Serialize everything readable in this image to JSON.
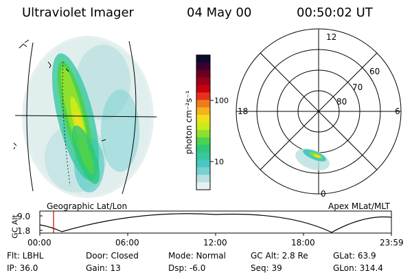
{
  "header": {
    "instrument": "Ultraviolet Imager",
    "date": "04 May 00",
    "time": "00:50:02 UT"
  },
  "left_map": {
    "caption": "Geographic Lat/Lon"
  },
  "colorbar": {
    "unit_label": "photon cm⁻²s⁻¹",
    "ticks": [
      "100",
      "10"
    ],
    "colors": [
      "#0b0b2e",
      "#3a0030",
      "#6a0020",
      "#9a0016",
      "#c80010",
      "#e6301a",
      "#f07a1c",
      "#f5b21e",
      "#f0e01a",
      "#c8ec1a",
      "#8ee030",
      "#4ed24e",
      "#2cc878",
      "#38c8a0",
      "#48c8c0",
      "#78d0d0",
      "#b8e0e0",
      "#e6f0f0"
    ]
  },
  "polar": {
    "caption": "Apex MLat/MLT",
    "mlt_labels": [
      "12",
      "18",
      "6",
      "0"
    ],
    "lat_labels": [
      "60",
      "70",
      "80"
    ]
  },
  "altitude_plot": {
    "ylabel": "GC Alt",
    "y_ticks": [
      "9.0",
      "1.8"
    ],
    "x_ticks": [
      "00:00",
      "06:00",
      "12:00",
      "18:00",
      "23:59"
    ],
    "current_time_marker": "00:50",
    "marker_color": "#cc0000"
  },
  "status": {
    "filter": "Flt: LBHL",
    "ip": "IP: 36.0",
    "door": "Door: Closed",
    "gain": "Gain: 13",
    "mode": "Mode: Normal",
    "dsp": "Dsp:    -6.0",
    "gc_alt": "GC Alt: 2.8 Re",
    "seq": "Seq: 39",
    "glat": "GLat:  63.9",
    "glon": "GLon: 314.4"
  }
}
